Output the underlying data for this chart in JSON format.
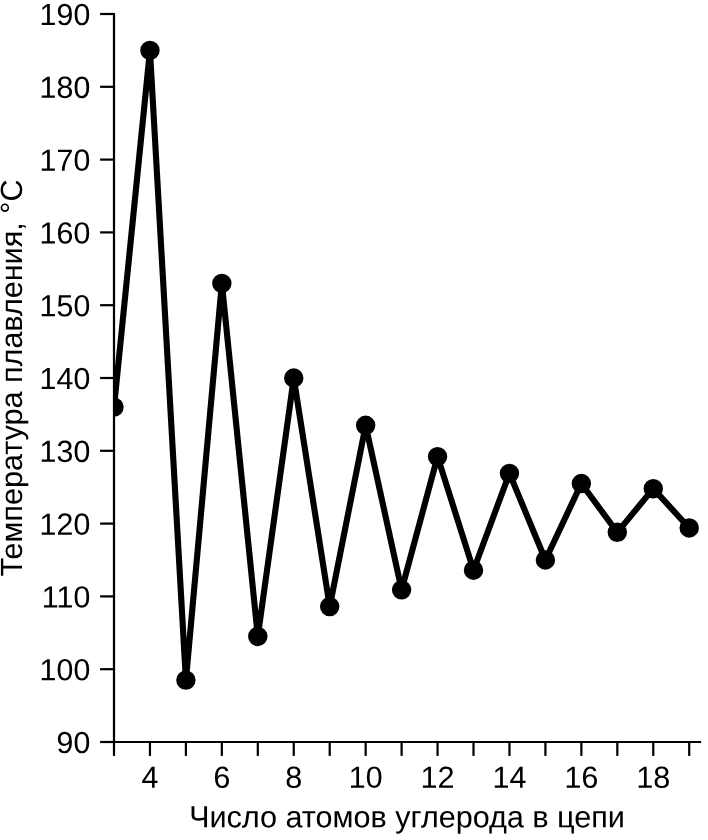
{
  "chart_data": {
    "type": "line",
    "xlabel": "Число атомов углерода в цепи",
    "ylabel": "Температура плавления, °C",
    "x": [
      3,
      4,
      5,
      6,
      7,
      8,
      9,
      10,
      11,
      12,
      13,
      14,
      15,
      16,
      17,
      18,
      19
    ],
    "series": [
      {
        "color": "#000000",
        "values": [
          136,
          185,
          98.5,
          153,
          104.5,
          140,
          108.6,
          133.5,
          110.9,
          129.2,
          113.6,
          126.9,
          115,
          125.5,
          118.8,
          124.8,
          119.4
        ]
      }
    ],
    "xlim": [
      3,
      19.3
    ],
    "ylim": [
      90,
      190
    ],
    "xticks": [
      {
        "value": 3,
        "label": null
      },
      4,
      {
        "value": 5,
        "label": null
      },
      6,
      {
        "value": 7,
        "label": null
      },
      8,
      {
        "value": 9,
        "label": null
      },
      10,
      {
        "value": 11,
        "label": null
      },
      12,
      {
        "value": 13,
        "label": null
      },
      14,
      {
        "value": 15,
        "label": null
      },
      16,
      {
        "value": 17,
        "label": null
      },
      18,
      {
        "value": 19,
        "label": null
      }
    ],
    "yticks": [
      90,
      100,
      110,
      120,
      130,
      140,
      150,
      160,
      170,
      180,
      190
    ],
    "marker": "circle",
    "line_style": "solid",
    "grid": false,
    "legend": false
  }
}
